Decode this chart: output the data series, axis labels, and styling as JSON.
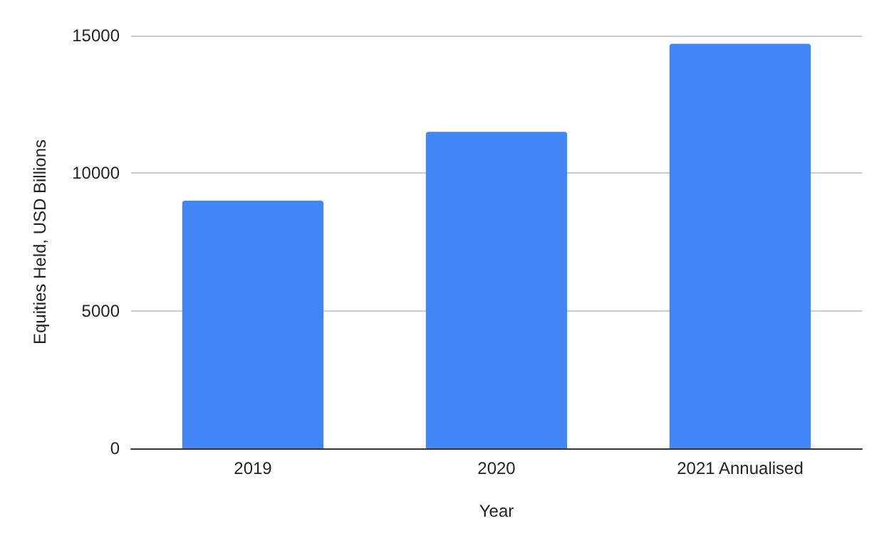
{
  "chart_data": {
    "type": "bar",
    "xlabel": "Year",
    "ylabel": "Equities Held, USD Billions",
    "categories": [
      "2019",
      "2020",
      "2021 Annualised"
    ],
    "values": [
      9000,
      11500,
      14700
    ],
    "color": "#4285f4",
    "ylim": [
      0,
      15000
    ],
    "yticks": [
      0,
      5000,
      10000,
      15000
    ],
    "grid": "y"
  }
}
